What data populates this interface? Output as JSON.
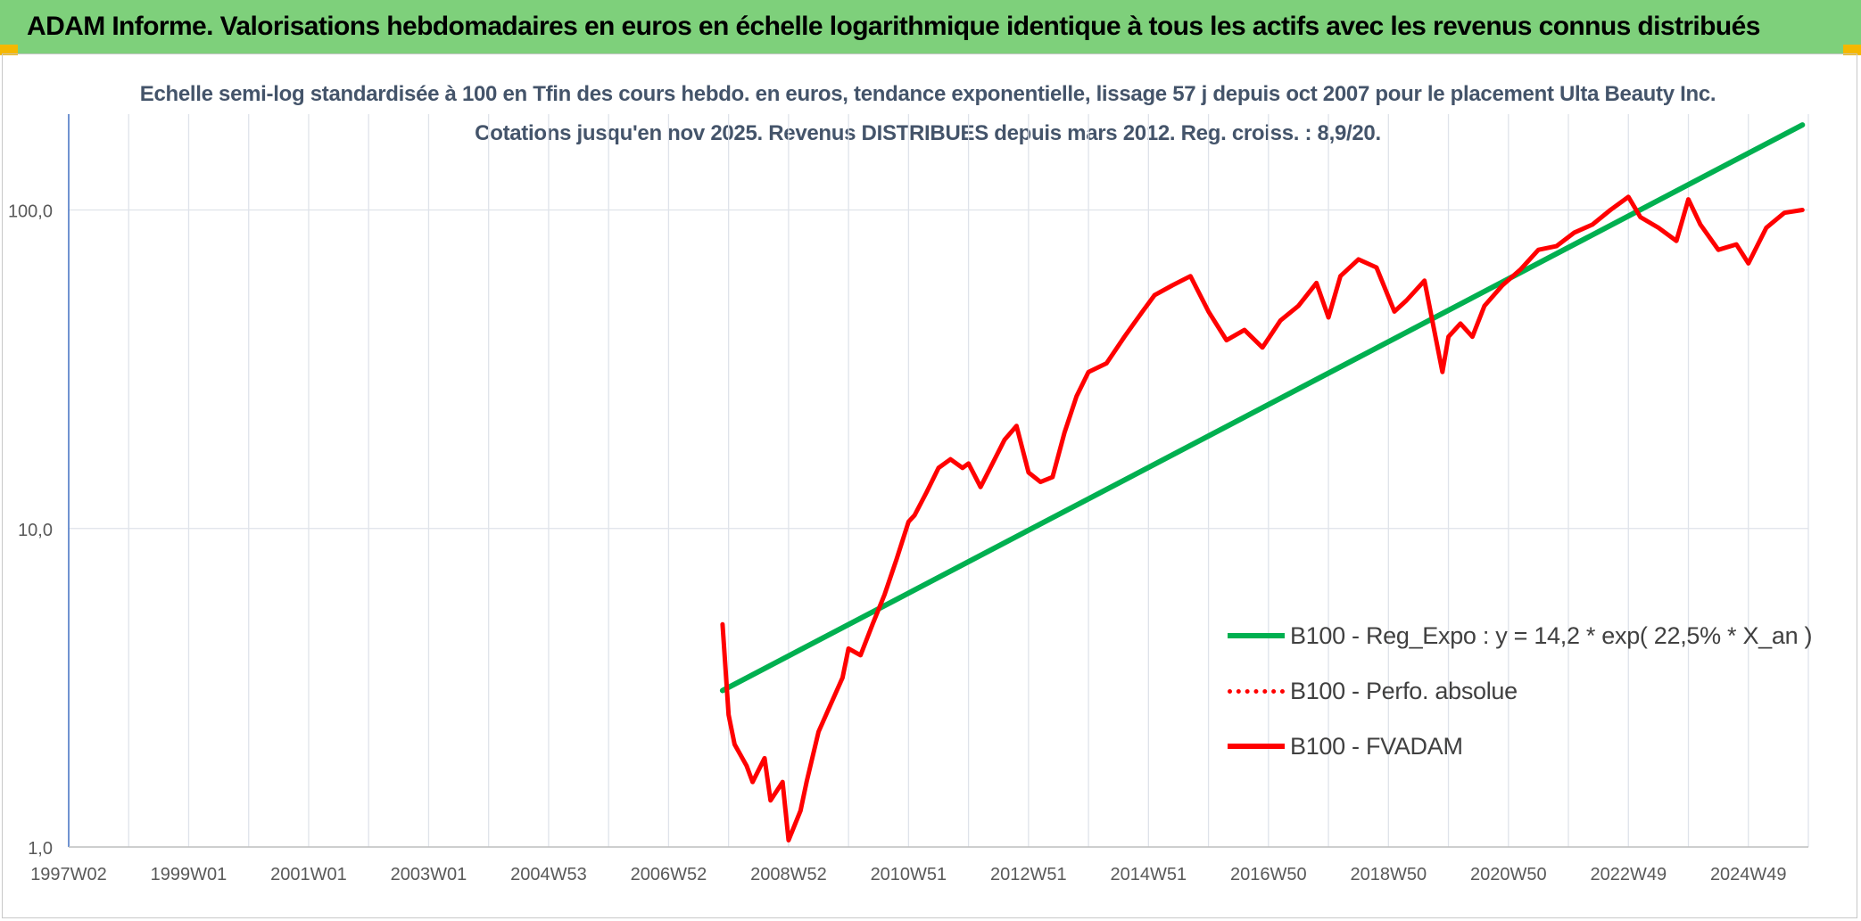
{
  "header": {
    "title": "ADAM Informe. Valorisations hebdomadaires en euros en échelle logarithmique identique à tous les actifs avec les revenus connus distribués"
  },
  "colors": {
    "banner": "#7ed07b",
    "trend": "#00b050",
    "series": "#ff0000",
    "title_text": "#44546a",
    "corner_accent": "#f5b800"
  },
  "chart_data": {
    "type": "line",
    "title": "Echelle semi-log standardisée à 100 en Tfin des cours hebdo. en euros, tendance exponentielle, lissage 57 j depuis oct 2007 pour le placement Ulta Beauty Inc. Cotations jusqu'en nov 2025. Revenus DISTRIBUES depuis mars 2012. Reg. croiss. : 8,9/20.",
    "y_scale": "log",
    "ylim": [
      1,
      200
    ],
    "y_ticks": [
      "1,0",
      "10,0",
      "100,0"
    ],
    "y_tick_values": [
      1,
      10,
      100
    ],
    "x_tick_labels": [
      "1997W02",
      "1999W01",
      "2001W01",
      "2003W01",
      "2004W53",
      "2006W52",
      "2008W52",
      "2010W51",
      "2012W51",
      "2014W51",
      "2016W50",
      "2018W50",
      "2020W50",
      "2022W49",
      "2024W49"
    ],
    "x_range": [
      1997.0,
      2026.0
    ],
    "x_tick_values": [
      1997,
      1999,
      2001,
      2003,
      2005,
      2007,
      2009,
      2011,
      2013,
      2015,
      2017,
      2019,
      2021,
      2023,
      2025
    ],
    "grid": true,
    "legend_position": "bottom-right",
    "series": [
      {
        "name": "B100 - Reg_Expo : y = 14,2 * exp( 22,5% * X_an )",
        "style": "solid",
        "color": "#00b050",
        "x": [
          2007.9,
          2025.9
        ],
        "y": [
          3.1,
          185
        ]
      },
      {
        "name": "B100 - Perfo. absolue",
        "style": "dotted",
        "color": "#ff0000",
        "x": [],
        "y": []
      },
      {
        "name": "B100 - FVADAM",
        "style": "solid",
        "color": "#ff0000",
        "x": [
          2007.9,
          2008.0,
          2008.1,
          2008.3,
          2008.4,
          2008.6,
          2008.7,
          2008.9,
          2009.0,
          2009.2,
          2009.3,
          2009.5,
          2009.7,
          2009.9,
          2010.0,
          2010.2,
          2010.4,
          2010.6,
          2010.8,
          2011.0,
          2011.1,
          2011.3,
          2011.5,
          2011.7,
          2011.9,
          2012.0,
          2012.2,
          2012.4,
          2012.6,
          2012.8,
          2013.0,
          2013.2,
          2013.4,
          2013.6,
          2013.8,
          2014.0,
          2014.3,
          2014.6,
          2014.9,
          2015.1,
          2015.4,
          2015.7,
          2016.0,
          2016.3,
          2016.6,
          2016.9,
          2017.2,
          2017.5,
          2017.8,
          2018.0,
          2018.2,
          2018.5,
          2018.8,
          2019.1,
          2019.3,
          2019.6,
          2019.9,
          2020.0,
          2020.2,
          2020.4,
          2020.6,
          2020.9,
          2021.2,
          2021.5,
          2021.8,
          2022.1,
          2022.4,
          2022.7,
          2023.0,
          2023.2,
          2023.5,
          2023.8,
          2024.0,
          2024.2,
          2024.5,
          2024.8,
          2025.0,
          2025.3,
          2025.6,
          2025.9
        ],
        "y": [
          5.0,
          2.6,
          2.1,
          1.8,
          1.6,
          1.9,
          1.4,
          1.6,
          1.05,
          1.3,
          1.6,
          2.3,
          2.8,
          3.4,
          4.2,
          4.0,
          5.0,
          6.2,
          8.0,
          10.5,
          11.0,
          13.0,
          15.5,
          16.5,
          15.5,
          16.0,
          13.5,
          16.0,
          19.0,
          21.0,
          15.0,
          14.0,
          14.5,
          20.0,
          26.0,
          31.0,
          33.0,
          40.0,
          48.0,
          54.0,
          58.0,
          62.0,
          48.0,
          39.0,
          42.0,
          37.0,
          45.0,
          50.0,
          59.0,
          46.0,
          62.0,
          70.0,
          66.0,
          48.0,
          52.0,
          60.0,
          31.0,
          40.0,
          44.0,
          40.0,
          50.0,
          58.0,
          65.0,
          75.0,
          77.0,
          85.0,
          90.0,
          100.0,
          110.0,
          95.0,
          88.0,
          80.0,
          108.0,
          90.0,
          75.0,
          78.0,
          68.0,
          88.0,
          98.0,
          100.0
        ]
      }
    ]
  }
}
